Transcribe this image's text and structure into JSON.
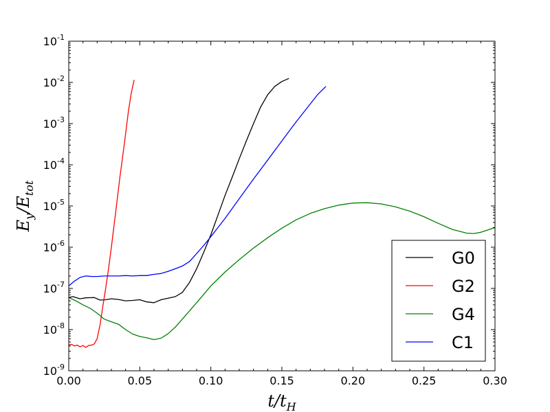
{
  "chart_data": {
    "type": "line",
    "title": "",
    "xlabel": "t/t_H",
    "ylabel": "E_y/E_tot",
    "xlabel_parts": {
      "main": "t/t",
      "sub": "H"
    },
    "ylabel_parts": {
      "main1": "E",
      "sub1": "y",
      "main2": "/E",
      "sub2": "tot"
    },
    "xlim": [
      0.0,
      0.3
    ],
    "ylim": [
      1e-09,
      0.1
    ],
    "yscale": "log",
    "grid": false,
    "legend_position": "lower-right",
    "x_ticks": [
      "0.00",
      "0.05",
      "0.10",
      "0.15",
      "0.20",
      "0.25",
      "0.30"
    ],
    "x_tick_values": [
      0.0,
      0.05,
      0.1,
      0.15,
      0.2,
      0.25,
      0.3
    ],
    "y_ticks": [
      {
        "base": "10",
        "exp": "-9",
        "value": 1e-09
      },
      {
        "base": "10",
        "exp": "-8",
        "value": 1e-08
      },
      {
        "base": "10",
        "exp": "-7",
        "value": 1e-07
      },
      {
        "base": "10",
        "exp": "-6",
        "value": 1e-06
      },
      {
        "base": "10",
        "exp": "-5",
        "value": 1e-05
      },
      {
        "base": "10",
        "exp": "-4",
        "value": 0.0001
      },
      {
        "base": "10",
        "exp": "-3",
        "value": 0.001
      },
      {
        "base": "10",
        "exp": "-2",
        "value": 0.01
      },
      {
        "base": "10",
        "exp": "-1",
        "value": 0.1
      }
    ],
    "series": [
      {
        "name": "G0",
        "color": "#000000",
        "x": [
          0.0,
          0.003,
          0.008,
          0.012,
          0.018,
          0.022,
          0.026,
          0.03,
          0.035,
          0.04,
          0.045,
          0.05,
          0.055,
          0.06,
          0.065,
          0.07,
          0.075,
          0.08,
          0.085,
          0.09,
          0.095,
          0.1,
          0.105,
          0.11,
          0.115,
          0.12,
          0.125,
          0.13,
          0.135,
          0.14,
          0.145,
          0.15,
          0.155
        ],
        "y": [
          6e-08,
          6.3e-08,
          5.6e-08,
          5.9e-08,
          6e-08,
          5.2e-08,
          5.3e-08,
          5.6e-08,
          5.4e-08,
          5e-08,
          5.1e-08,
          5.3e-08,
          4.7e-08,
          4.5e-08,
          5.3e-08,
          5.8e-08,
          6.3e-08,
          8e-08,
          1.4e-07,
          3e-07,
          7.5e-07,
          2e-06,
          6e-06,
          1.8e-05,
          5e-05,
          0.00014,
          0.00038,
          0.001,
          0.0025,
          0.005,
          0.008,
          0.0105,
          0.0125
        ]
      },
      {
        "name": "G2",
        "color": "#ff0000",
        "x": [
          0.0,
          0.002,
          0.004,
          0.006,
          0.008,
          0.01,
          0.012,
          0.014,
          0.016,
          0.018,
          0.02,
          0.022,
          0.024,
          0.026,
          0.028,
          0.03,
          0.033,
          0.036,
          0.039,
          0.042,
          0.044,
          0.046
        ],
        "y": [
          4.2e-09,
          4.4e-09,
          4e-09,
          4.2e-09,
          3.8e-09,
          4.1e-09,
          3.7e-09,
          4.1e-09,
          4.2e-09,
          4.5e-09,
          6e-09,
          1.3e-08,
          3.7e-08,
          1e-07,
          3e-07,
          1e-06,
          7e-06,
          5e-05,
          0.0003,
          0.002,
          0.0055,
          0.0115
        ]
      },
      {
        "name": "G4",
        "color": "#008000",
        "x": [
          0.0,
          0.005,
          0.01,
          0.015,
          0.02,
          0.025,
          0.03,
          0.035,
          0.04,
          0.045,
          0.05,
          0.055,
          0.06,
          0.065,
          0.07,
          0.075,
          0.08,
          0.09,
          0.1,
          0.11,
          0.12,
          0.13,
          0.14,
          0.15,
          0.16,
          0.17,
          0.18,
          0.19,
          0.2,
          0.21,
          0.22,
          0.23,
          0.24,
          0.25,
          0.26,
          0.27,
          0.28,
          0.285,
          0.29,
          0.3
        ],
        "y": [
          6e-08,
          5e-08,
          4e-08,
          3.3e-08,
          2.5e-08,
          1.8e-08,
          1.55e-08,
          1.35e-08,
          1e-08,
          7.8e-09,
          6.8e-09,
          6.3e-09,
          5.7e-09,
          6.2e-09,
          8e-09,
          1.15e-08,
          1.8e-08,
          4.5e-08,
          1.15e-07,
          2.5e-07,
          5e-07,
          9.5e-07,
          1.7e-06,
          2.9e-06,
          4.6e-06,
          6.6e-06,
          8.6e-06,
          1.05e-05,
          1.18e-05,
          1.2e-05,
          1.12e-05,
          9.5e-06,
          7.5e-06,
          5.5e-06,
          3.8e-06,
          2.7e-06,
          2.2e-06,
          2.15e-06,
          2.3e-06,
          3e-06
        ]
      },
      {
        "name": "C1",
        "color": "#0000ff",
        "x": [
          0.0,
          0.004,
          0.008,
          0.012,
          0.016,
          0.02,
          0.025,
          0.03,
          0.035,
          0.04,
          0.045,
          0.05,
          0.055,
          0.06,
          0.065,
          0.07,
          0.075,
          0.08,
          0.085,
          0.09,
          0.095,
          0.1,
          0.105,
          0.11,
          0.12,
          0.13,
          0.14,
          0.15,
          0.16,
          0.17,
          0.175,
          0.181
        ],
        "y": [
          1.15e-07,
          1.5e-07,
          1.85e-07,
          2e-07,
          1.95e-07,
          1.95e-07,
          2e-07,
          2e-07,
          2e-07,
          2.05e-07,
          2e-07,
          2.05e-07,
          2.05e-07,
          2.2e-07,
          2.3e-07,
          2.6e-07,
          3e-07,
          3.5e-07,
          4.5e-07,
          7e-07,
          1.1e-06,
          1.8e-06,
          3e-06,
          5e-06,
          1.5e-05,
          4.5e-05,
          0.00013,
          0.00038,
          0.0011,
          0.003,
          0.005,
          0.008
        ]
      }
    ]
  }
}
